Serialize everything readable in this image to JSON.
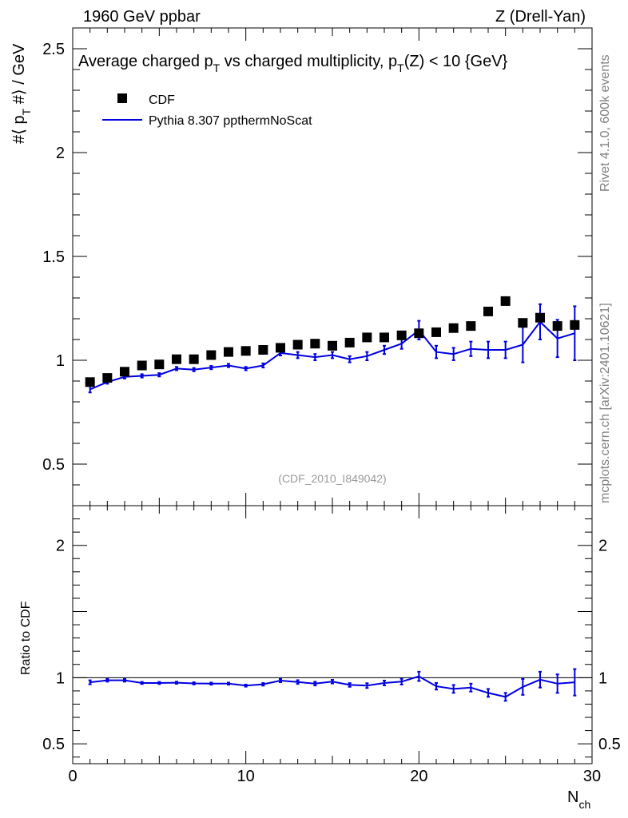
{
  "header": {
    "left": "1960 GeV ppbar",
    "right": "Z (Drell-Yan)"
  },
  "side_labels": {
    "rivet": "Rivet 4.1.0,  600k events",
    "mcplots": "mcplots.cern.ch [arXiv:2401.10621]"
  },
  "chart_data": [
    {
      "type": "scatter+line",
      "title_parts": {
        "t1": "Average charged p",
        "sub1": "T",
        "t2": " vs charged multiplicity, p",
        "sub2": "T",
        "t3": "(Z) < 10 {GeV}"
      },
      "ylabel_parts": {
        "a": "#⟨ p",
        "sub": "T",
        "b": " #⟩ / GeV"
      },
      "analysis_id": "(CDF_2010_I849042)",
      "xlim": [
        0,
        30
      ],
      "ylim": [
        0.3,
        2.6
      ],
      "yticks": [
        0.5,
        1,
        1.5,
        2,
        2.5
      ],
      "ytick_labels": [
        "0.5",
        "1",
        "1.5",
        "2",
        "2.5"
      ],
      "legend": {
        "placement": "top-left",
        "data_label": "CDF",
        "mc_label": "Pythia 8.307 ppthermNoScat"
      },
      "series": [
        {
          "name": "CDF",
          "style": "markers",
          "color": "#000000",
          "x": [
            1,
            2,
            3,
            4,
            5,
            6,
            7,
            8,
            9,
            10,
            11,
            12,
            13,
            14,
            15,
            16,
            17,
            18,
            19,
            20,
            21,
            22,
            23,
            24,
            25,
            26,
            27,
            28,
            29
          ],
          "y": [
            0.895,
            0.915,
            0.945,
            0.975,
            0.98,
            1.005,
            1.005,
            1.025,
            1.04,
            1.045,
            1.05,
            1.06,
            1.075,
            1.08,
            1.07,
            1.085,
            1.11,
            1.11,
            1.12,
            1.13,
            1.135,
            1.155,
            1.165,
            1.235,
            1.285,
            1.18,
            1.205,
            1.165,
            1.17
          ]
        },
        {
          "name": "Pythia 8.307 ppthermNoScat",
          "style": "line+errorbars",
          "color": "#0000e0",
          "x": [
            1,
            2,
            3,
            4,
            5,
            6,
            7,
            8,
            9,
            10,
            11,
            12,
            13,
            14,
            15,
            16,
            17,
            18,
            19,
            20,
            21,
            22,
            23,
            24,
            25,
            26,
            27,
            28,
            29
          ],
          "y": [
            0.86,
            0.895,
            0.92,
            0.925,
            0.93,
            0.96,
            0.955,
            0.965,
            0.975,
            0.96,
            0.975,
            1.035,
            1.025,
            1.015,
            1.025,
            1.005,
            1.02,
            1.05,
            1.08,
            1.145,
            1.04,
            1.03,
            1.055,
            1.05,
            1.05,
            1.075,
            1.185,
            1.105,
            1.13
          ],
          "err": [
            0.015,
            0.008,
            0.008,
            0.008,
            0.008,
            0.008,
            0.008,
            0.008,
            0.008,
            0.008,
            0.01,
            0.012,
            0.015,
            0.015,
            0.015,
            0.015,
            0.02,
            0.02,
            0.025,
            0.045,
            0.03,
            0.03,
            0.035,
            0.04,
            0.04,
            0.085,
            0.085,
            0.09,
            0.13
          ]
        }
      ]
    },
    {
      "type": "ratio",
      "ylabel": "Ratio to CDF",
      "xlabel_main": "N",
      "xlabel_sub": "ch",
      "xlim": [
        0,
        30
      ],
      "ylim": [
        0.35,
        2.3
      ],
      "xticks": [
        0,
        10,
        20,
        30
      ],
      "xtick_labels": [
        "0",
        "10",
        "20",
        "30"
      ],
      "yticks": [
        0.5,
        1,
        2
      ],
      "ytick_labels": [
        "0.5",
        "1",
        "2"
      ],
      "reference": 1,
      "series": [
        {
          "name": "Pythia 8.307 ppthermNoScat / CDF",
          "color": "#0000e0",
          "x": [
            1,
            2,
            3,
            4,
            5,
            6,
            7,
            8,
            9,
            10,
            11,
            12,
            13,
            14,
            15,
            16,
            17,
            18,
            19,
            20,
            21,
            22,
            23,
            24,
            25,
            26,
            27,
            28,
            29
          ],
          "y": [
            0.965,
            0.98,
            0.98,
            0.96,
            0.96,
            0.962,
            0.957,
            0.955,
            0.955,
            0.94,
            0.95,
            0.978,
            0.967,
            0.955,
            0.97,
            0.945,
            0.94,
            0.96,
            0.97,
            1.01,
            0.935,
            0.915,
            0.925,
            0.885,
            0.855,
            0.93,
            0.985,
            0.955,
            0.965
          ],
          "err": [
            0.015,
            0.01,
            0.01,
            0.008,
            0.008,
            0.008,
            0.008,
            0.008,
            0.008,
            0.008,
            0.01,
            0.012,
            0.014,
            0.014,
            0.014,
            0.014,
            0.018,
            0.018,
            0.022,
            0.035,
            0.025,
            0.03,
            0.03,
            0.03,
            0.03,
            0.06,
            0.06,
            0.07,
            0.1
          ]
        }
      ]
    }
  ]
}
